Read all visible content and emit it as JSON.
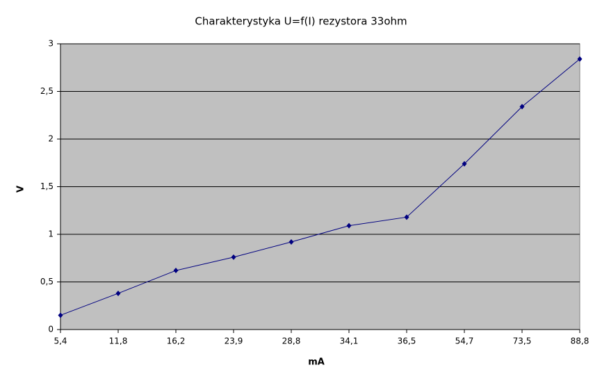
{
  "chart_data": {
    "type": "line",
    "title": "Charakterystyka U=f(I) rezystora 33ohm",
    "x_label": "mA",
    "y_label": "V",
    "categories": [
      "5,4",
      "11,8",
      "16,2",
      "23,9",
      "28,8",
      "34,1",
      "36,5",
      "54,7",
      "73,5",
      "88,8"
    ],
    "series": [
      {
        "name": "U",
        "color": "#000080",
        "values": [
          0.15,
          0.38,
          0.62,
          0.76,
          0.92,
          1.09,
          1.18,
          1.74,
          2.34,
          2.84
        ]
      }
    ],
    "ylim": [
      0,
      3
    ],
    "yticks": [
      0,
      {
        "value": 0.5,
        "label": "0,5"
      },
      1,
      {
        "value": 1.5,
        "label": "1,5"
      },
      2,
      {
        "value": 2.5,
        "label": "2,5"
      },
      3
    ],
    "grid": true
  }
}
